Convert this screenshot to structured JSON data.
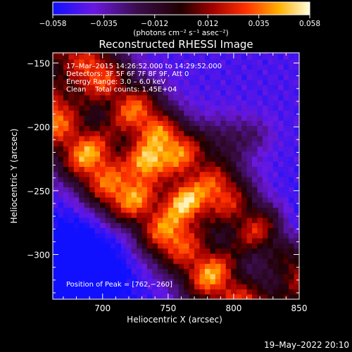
{
  "chart_data": {
    "type": "heatmap",
    "title": "Reconstructed RHESSI Image",
    "xlabel": "Heliocentric X (arcsec)",
    "ylabel": "Heliocentric Y (arcsec)",
    "xlim": [
      662,
      850
    ],
    "ylim": [
      -335,
      -142
    ],
    "x_ticks": [
      700,
      750,
      800,
      850
    ],
    "x_tick_labels": [
      "700",
      "750",
      "800",
      "850"
    ],
    "y_ticks": [
      -150,
      -200,
      -250,
      -300
    ],
    "y_tick_labels": [
      "−150",
      "−200",
      "−250",
      "−300"
    ],
    "colorbar": {
      "range": [
        -0.058,
        0.058
      ],
      "ticks": [
        -0.058,
        -0.035,
        -0.012,
        0.012,
        0.035,
        0.058
      ],
      "tick_labels": [
        "−0.058",
        "−0.035",
        "−0.012",
        "0.012",
        "0.035",
        "0.058"
      ],
      "unit_label": "(photons cm⁻² s⁻¹ asec⁻²)"
    },
    "annotations": [
      "17–Mar–2015 14:26:52.000 to 14:29:52.000",
      "Detectors: 3F 5F 6F 7F 8F 9F, Att 0",
      "Energy Range: 3.0 – 6.0 keV",
      "Clean    Total counts: 1.45E+04"
    ],
    "peak_label": "Position of Peak = [762,−260]",
    "peak": {
      "x": 762,
      "y": -260
    },
    "intensity_model": {
      "background": -0.046,
      "bands": [
        {
          "offset": -25,
          "amp": 0.078,
          "width": 24
        },
        {
          "offset": 25,
          "amp": 0.07,
          "width": 23
        }
      ],
      "blobs": [
        {
          "x": 733,
          "y": -226,
          "amp": 0.05,
          "r": 10
        },
        {
          "x": 762,
          "y": -258,
          "amp": 0.052,
          "r": 10
        },
        {
          "x": 745,
          "y": -205,
          "amp": 0.02,
          "r": 10
        },
        {
          "x": 697,
          "y": -250,
          "amp": 0.018,
          "r": 11
        },
        {
          "x": 795,
          "y": -210,
          "amp": 0.022,
          "r": 14
        },
        {
          "x": 817,
          "y": -206,
          "amp": 0.015,
          "r": 10
        }
      ],
      "dim_regions": [
        {
          "x": 683,
          "y": -310,
          "amp": -0.03,
          "r": 28
        },
        {
          "x": 840,
          "y": -295,
          "amp": -0.025,
          "r": 26
        }
      ],
      "grid_step": 4
    }
  },
  "footer": {
    "date": "19–May–2022 20:10"
  }
}
